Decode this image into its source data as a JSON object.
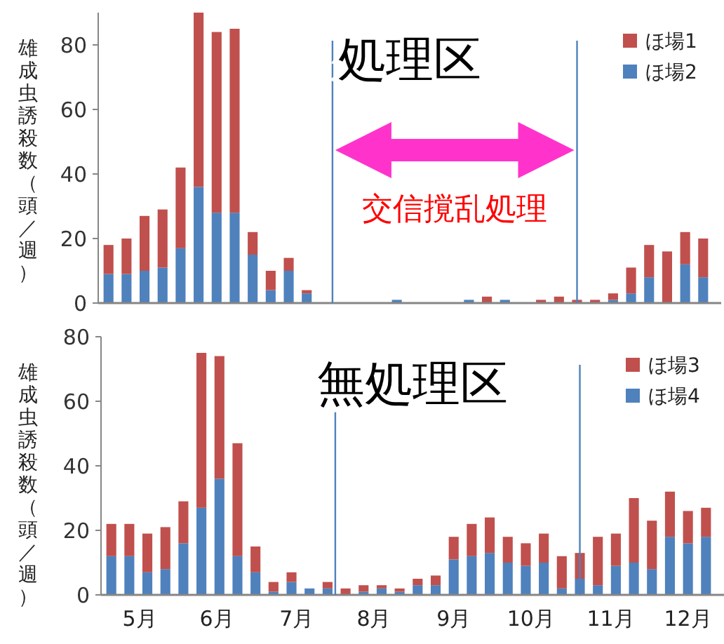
{
  "chart_data": [
    {
      "type": "bar",
      "stacked": true,
      "title": "処理区",
      "ylabel": "雄成虫誘殺数（頭／週）",
      "legend": "top right",
      "tick_labels": "y",
      "x": [
        "--05-05",
        "--05-12",
        "--05-19",
        "--05-26",
        "--06-02",
        "--06-09",
        "--06-16",
        "--06-23",
        "--06-30",
        "--07-07",
        "--07-14",
        "--07-21",
        "--07-28",
        "--08-04",
        "--08-11",
        "--08-18",
        "--08-25",
        "--09-01",
        "--09-08",
        "--09-15",
        "--09-22",
        "--09-29",
        "--10-06",
        "--10-13",
        "--10-20",
        "--10-27",
        "--11-03",
        "--11-10",
        "--11-17",
        "--11-24",
        "--12-01",
        "--12-08",
        "--12-15",
        "--12-22"
      ],
      "xlim": [
        "--05-01",
        "--12-29"
      ],
      "ylim": [
        0,
        90
      ],
      "yticks": [
        0,
        20,
        40,
        60,
        80
      ],
      "series": [
        {
          "name": "ほ場2",
          "color": "#4f81bd",
          "values": [
            9,
            9,
            10,
            11,
            17,
            36,
            28,
            28,
            15,
            4,
            10,
            3,
            0,
            0,
            0,
            0,
            1,
            0,
            0,
            0,
            1,
            0,
            1,
            0,
            0,
            0,
            0,
            0,
            1,
            3,
            8,
            0,
            12,
            8
          ]
        },
        {
          "name": "ほ場1",
          "color": "#c0504d",
          "values": [
            9,
            11,
            17,
            18,
            25,
            54,
            56,
            57,
            7,
            6,
            4,
            1,
            0,
            0,
            0,
            0,
            0,
            0,
            0,
            0,
            0,
            2,
            0,
            0,
            1,
            2,
            1,
            1,
            2,
            8,
            10,
            16,
            10,
            12
          ]
        }
      ],
      "ref_lines": [
        {
          "axis": "x",
          "value": "--07-31",
          "color": "#4f81bd"
        },
        {
          "axis": "x",
          "value": "--11-03",
          "color": "#4f81bd"
        }
      ],
      "annotations": [
        "交信撹乱処理"
      ]
    },
    {
      "type": "bar",
      "stacked": true,
      "title": "無処理区",
      "ylabel": "雄成虫誘殺数（頭／週）",
      "legend": "top right",
      "x": [
        "--05-05",
        "--05-12",
        "--05-19",
        "--05-26",
        "--06-02",
        "--06-09",
        "--06-16",
        "--06-23",
        "--06-30",
        "--07-07",
        "--07-14",
        "--07-21",
        "--07-28",
        "--08-04",
        "--08-11",
        "--08-18",
        "--08-25",
        "--09-01",
        "--09-08",
        "--09-15",
        "--09-22",
        "--09-29",
        "--10-06",
        "--10-13",
        "--10-20",
        "--10-27",
        "--11-03",
        "--11-10",
        "--11-17",
        "--11-24",
        "--12-01",
        "--12-08",
        "--12-15",
        "--12-22"
      ],
      "xlim": [
        "--05-01",
        "--12-29"
      ],
      "ylim": [
        0,
        80
      ],
      "yticks": [
        0,
        20,
        40,
        60,
        80
      ],
      "xticks": [
        {
          "value": "--05-16",
          "label": "5月"
        },
        {
          "value": "--06-15",
          "label": "6月"
        },
        {
          "value": "--07-16",
          "label": "7月"
        },
        {
          "value": "--08-15",
          "label": "8月"
        },
        {
          "value": "--09-15",
          "label": "9月"
        },
        {
          "value": "--10-15",
          "label": "10月"
        },
        {
          "value": "--11-15",
          "label": "11月"
        },
        {
          "value": "--12-15",
          "label": "12月"
        }
      ],
      "series": [
        {
          "name": "ほ場4",
          "color": "#4f81bd",
          "values": [
            12,
            12,
            7,
            8,
            16,
            27,
            36,
            12,
            7,
            1,
            4,
            2,
            2,
            0,
            1,
            2,
            1,
            3,
            3,
            11,
            12,
            13,
            10,
            9,
            10,
            2,
            5,
            3,
            9,
            10,
            8,
            18,
            16,
            18
          ]
        },
        {
          "name": "ほ場3",
          "color": "#c0504d",
          "values": [
            10,
            10,
            12,
            13,
            13,
            48,
            38,
            35,
            8,
            3,
            3,
            0,
            2,
            2,
            2,
            1,
            1,
            2,
            3,
            7,
            10,
            11,
            8,
            7,
            9,
            10,
            8,
            15,
            10,
            20,
            15,
            14,
            10,
            9
          ]
        }
      ],
      "ref_lines": [
        {
          "axis": "x",
          "value": "--07-31",
          "color": "#4f81bd"
        },
        {
          "axis": "x",
          "value": "--11-03",
          "color": "#4f81bd"
        }
      ]
    }
  ]
}
